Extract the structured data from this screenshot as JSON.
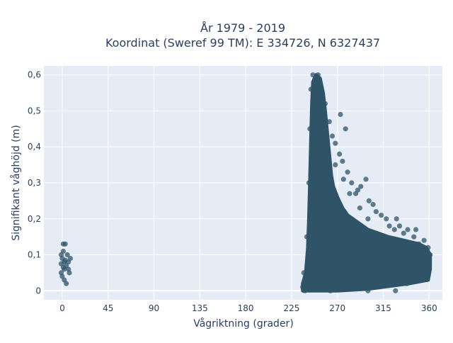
{
  "chart_data": {
    "type": "scatter",
    "title_line1": "År 1979 - 2019",
    "title_line2": "Koordinat (Sweref 99 TM): E 334726, N 6327437",
    "xlabel": "Vågriktning (grader)",
    "ylabel": "Signifikant våghöjd (m)",
    "xlim": [
      -18,
      373
    ],
    "ylim": [
      -0.025,
      0.625
    ],
    "x_ticks": [
      0,
      45,
      90,
      135,
      180,
      225,
      270,
      315,
      360
    ],
    "x_tick_labels": [
      "0",
      "45",
      "90",
      "135",
      "180",
      "225",
      "270",
      "315",
      "360"
    ],
    "y_ticks": [
      0,
      0.1,
      0.2,
      0.3,
      0.4,
      0.5,
      0.6
    ],
    "y_tick_labels": [
      "0",
      "0,1",
      "0,2",
      "0,3",
      "0,4",
      "0,5",
      "0,6"
    ],
    "grid": true,
    "marker_color": "#2f5468",
    "plot_bg": "#e5ecf6",
    "dense_region_outline": [
      [
        236,
        0.0
      ],
      [
        236,
        0.02
      ],
      [
        239,
        0.05
      ],
      [
        241,
        0.12
      ],
      [
        242,
        0.2
      ],
      [
        243,
        0.3
      ],
      [
        244,
        0.42
      ],
      [
        245,
        0.52
      ],
      [
        246,
        0.58
      ],
      [
        249,
        0.6
      ],
      [
        253,
        0.59
      ],
      [
        256,
        0.55
      ],
      [
        258,
        0.5
      ],
      [
        260,
        0.44
      ],
      [
        262,
        0.38
      ],
      [
        264,
        0.32
      ],
      [
        266,
        0.29
      ],
      [
        270,
        0.26
      ],
      [
        275,
        0.23
      ],
      [
        280,
        0.21
      ],
      [
        290,
        0.19
      ],
      [
        300,
        0.17
      ],
      [
        310,
        0.16
      ],
      [
        320,
        0.15
      ],
      [
        335,
        0.14
      ],
      [
        350,
        0.13
      ],
      [
        357,
        0.12
      ],
      [
        361,
        0.1
      ],
      [
        361,
        0.06
      ],
      [
        359,
        0.03
      ],
      [
        340,
        0.02
      ],
      [
        300,
        0.005
      ],
      [
        270,
        0.0
      ],
      [
        255,
        0.0
      ],
      [
        236,
        0.0
      ]
    ],
    "points": [
      [
        1,
        0.13
      ],
      [
        3,
        0.13
      ],
      [
        1,
        0.11
      ],
      [
        -1,
        0.1
      ],
      [
        0,
        0.09
      ],
      [
        2,
        0.08
      ],
      [
        4,
        0.07
      ],
      [
        6,
        0.06
      ],
      [
        2,
        0.06
      ],
      [
        -1,
        0.05
      ],
      [
        0,
        0.04
      ],
      [
        2,
        0.03
      ],
      [
        4,
        0.02
      ],
      [
        7,
        0.05
      ],
      [
        6,
        0.08
      ],
      [
        8,
        0.09
      ],
      [
        5,
        0.1
      ],
      [
        3,
        0.085
      ],
      [
        1,
        0.065
      ],
      [
        -1,
        0.075
      ],
      [
        246,
        0.6
      ],
      [
        251,
        0.6
      ],
      [
        249,
        0.58
      ],
      [
        254,
        0.55
      ],
      [
        256,
        0.5
      ],
      [
        262,
        0.47
      ],
      [
        273,
        0.49
      ],
      [
        278,
        0.45
      ],
      [
        265,
        0.43
      ],
      [
        268,
        0.41
      ],
      [
        272,
        0.38
      ],
      [
        275,
        0.36
      ],
      [
        280,
        0.33
      ],
      [
        284,
        0.3
      ],
      [
        290,
        0.28
      ],
      [
        293,
        0.29
      ],
      [
        298,
        0.31
      ],
      [
        288,
        0.27
      ],
      [
        301,
        0.25
      ],
      [
        305,
        0.24
      ],
      [
        308,
        0.22
      ],
      [
        313,
        0.21
      ],
      [
        318,
        0.2
      ],
      [
        321,
        0.18
      ],
      [
        328,
        0.2
      ],
      [
        331,
        0.18
      ],
      [
        335,
        0.16
      ],
      [
        339,
        0.17
      ],
      [
        345,
        0.15
      ],
      [
        350,
        0.13
      ],
      [
        355,
        0.14
      ],
      [
        359,
        0.12
      ],
      [
        361,
        0.1
      ],
      [
        347,
        0.17
      ],
      [
        326,
        0.17
      ],
      [
        300,
        0.2
      ],
      [
        292,
        0.23
      ],
      [
        282,
        0.27
      ],
      [
        276,
        0.31
      ],
      [
        268,
        0.35
      ],
      [
        258,
        0.52
      ],
      [
        244,
        0.56
      ],
      [
        243,
        0.45
      ],
      [
        242,
        0.3
      ],
      [
        240,
        0.15
      ],
      [
        237,
        0.05
      ],
      [
        236,
        0.01
      ],
      [
        238,
        0.0
      ],
      [
        263,
        0.0
      ],
      [
        300,
        0.0
      ],
      [
        327,
        0.0
      ],
      [
        338,
        0.02
      ],
      [
        356,
        0.05
      ],
      [
        360,
        0.08
      ]
    ]
  }
}
